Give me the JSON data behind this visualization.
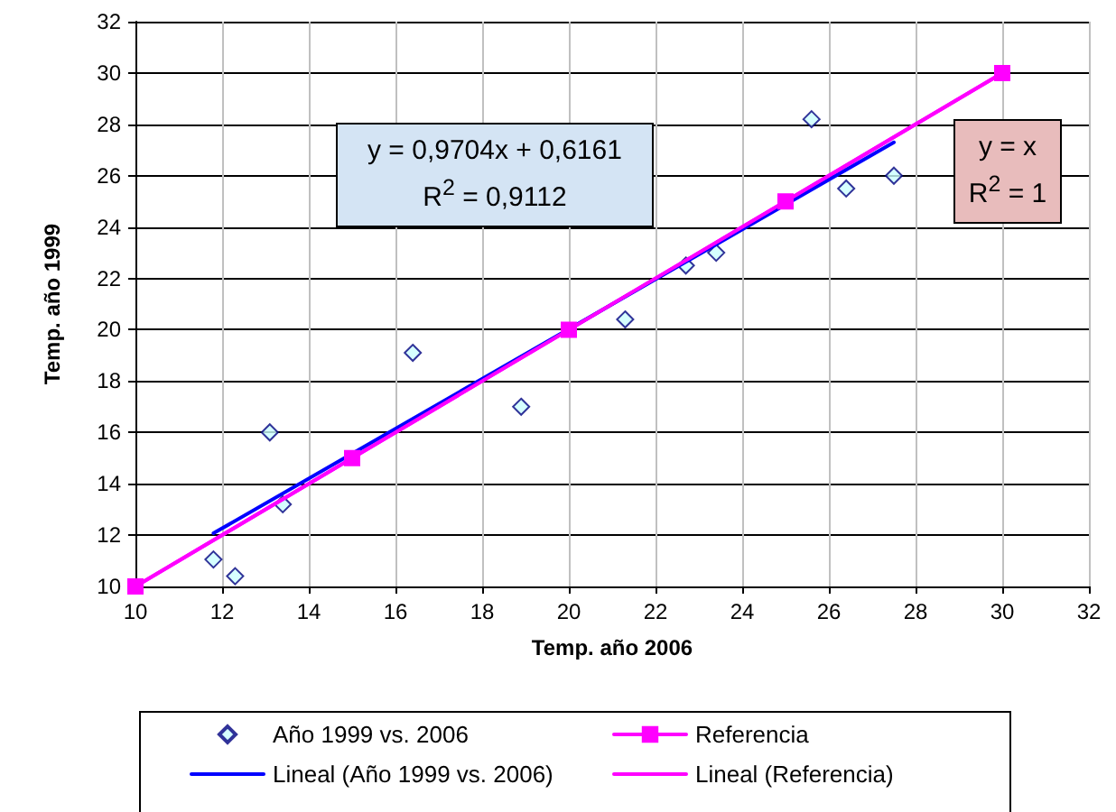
{
  "chart_data": {
    "type": "scatter",
    "xlabel": "Temp. año 2006",
    "ylabel": "Temp. año 1999",
    "xlim": [
      10,
      32
    ],
    "xticks": [
      10,
      12,
      14,
      16,
      18,
      20,
      22,
      24,
      26,
      28,
      30,
      32
    ],
    "ylim": [
      10,
      32
    ],
    "yticks": [
      10,
      12,
      14,
      16,
      18,
      20,
      22,
      24,
      26,
      28,
      30,
      32
    ],
    "grid": true,
    "legend": "bottom",
    "series": [
      {
        "name": "Año 1999 vs. 2006",
        "marker": "diamond",
        "color": "#ccffff",
        "x": [
          11.8,
          12.3,
          13.1,
          13.4,
          16.4,
          18.9,
          21.3,
          22.7,
          23.4,
          25.6,
          26.4,
          27.5
        ],
        "values": [
          11.05,
          10.4,
          16.0,
          13.2,
          19.1,
          17.0,
          20.4,
          22.5,
          23.0,
          28.2,
          25.5,
          26.0
        ]
      },
      {
        "name": "Referencia",
        "type": "line",
        "marker": "square",
        "line_style": "solid",
        "color": "#ff00ff",
        "x": [
          10,
          15,
          20,
          25,
          30
        ],
        "values": [
          10,
          15,
          20,
          25,
          30
        ]
      },
      {
        "name": "Lineal (Año 1999 vs. 2006)",
        "type": "line",
        "marker": "none",
        "line_style": "solid",
        "color": "#0000ff",
        "x": [
          11.8,
          27.5
        ],
        "values": [
          12.07,
          27.3
        ]
      },
      {
        "name": "Lineal (Referencia)",
        "type": "line",
        "marker": "none",
        "line_style": "solid",
        "color": "#ff00ff",
        "x": [
          10,
          30
        ],
        "values": [
          10,
          30
        ]
      }
    ],
    "annotations": [
      "y = 0,9704x + 0,6161\nR$^{2}$ = 0,9112",
      "y = x\nR$^{2}$ = 1"
    ]
  }
}
